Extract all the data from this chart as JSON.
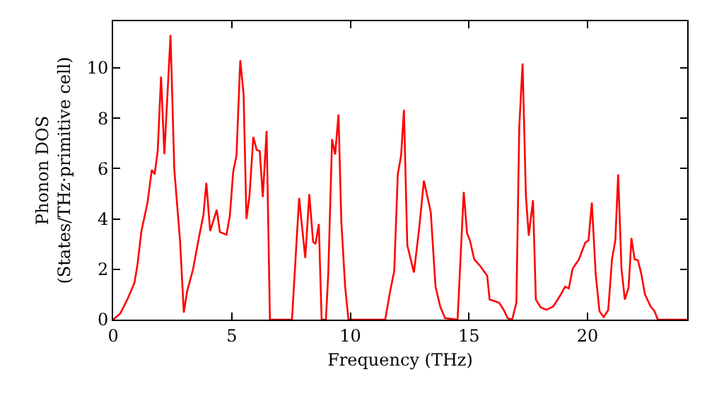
{
  "chart_data": {
    "type": "line",
    "xlabel": "Frequency (THz)",
    "ylabel": "Phonon DOS\n(States/THz·primitive cell)",
    "x": [
      0,
      0.3,
      0.6,
      0.9,
      1.03,
      1.19,
      1.45,
      1.63,
      1.75,
      1.88,
      2.02,
      2.16,
      2.42,
      2.58,
      2.82,
      2.98,
      3.12,
      3.37,
      3.63,
      3.81,
      3.93,
      4.09,
      4.37,
      4.5,
      4.78,
      4.92,
      5.06,
      5.2,
      5.36,
      5.5,
      5.62,
      5.75,
      5.91,
      6.05,
      6.18,
      6.31,
      6.47,
      6.61,
      7.54,
      7.84,
      8.1,
      8.27,
      8.43,
      8.53,
      8.67,
      8.79,
      8.97,
      9.07,
      9.23,
      9.36,
      9.5,
      9.62,
      9.78,
      9.92,
      11.47,
      11.67,
      11.85,
      12.0,
      12.14,
      12.26,
      12.4,
      12.68,
      12.9,
      13.1,
      13.39,
      13.59,
      13.79,
      13.99,
      14.52,
      14.78,
      14.92,
      15.04,
      15.22,
      15.48,
      15.77,
      15.87,
      16.27,
      16.47,
      16.63,
      16.82,
      17.0,
      17.12,
      17.26,
      17.4,
      17.52,
      17.7,
      17.82,
      18.02,
      18.26,
      18.55,
      18.85,
      19.05,
      19.21,
      19.37,
      19.64,
      19.9,
      20.04,
      20.18,
      20.34,
      20.5,
      20.68,
      20.87,
      21.03,
      21.17,
      21.29,
      21.43,
      21.57,
      21.73,
      21.85,
      21.98,
      22.12,
      22.26,
      22.42,
      22.66,
      22.82,
      22.96,
      24.2
    ],
    "series": [
      {
        "color": "#ff0000",
        "values": [
          0,
          0.24,
          0.8,
          1.46,
          2.2,
          3.5,
          4.65,
          5.95,
          5.77,
          6.7,
          9.65,
          6.57,
          11.3,
          5.95,
          3.15,
          0.28,
          1.12,
          2.0,
          3.33,
          4.17,
          5.43,
          3.52,
          4.36,
          3.48,
          3.37,
          4.12,
          5.86,
          6.52,
          10.3,
          8.95,
          3.99,
          4.93,
          7.26,
          6.74,
          6.7,
          4.87,
          7.49,
          0,
          0,
          4.83,
          2.45,
          4.98,
          3.09,
          3.0,
          3.8,
          0,
          0,
          1.84,
          7.17,
          6.56,
          8.15,
          3.9,
          1.31,
          0,
          0,
          1.09,
          1.93,
          5.77,
          6.52,
          8.33,
          2.96,
          1.87,
          3.61,
          5.52,
          4.27,
          1.31,
          0.52,
          0.06,
          0,
          5.07,
          3.43,
          3.15,
          2.4,
          2.12,
          1.74,
          0.8,
          0.67,
          0.38,
          0.06,
          0,
          0.67,
          7.64,
          10.17,
          4.93,
          3.33,
          4.74,
          0.8,
          0.49,
          0.39,
          0.52,
          0.96,
          1.31,
          1.24,
          2.02,
          2.4,
          3.05,
          3.15,
          4.65,
          1.84,
          0.34,
          0.1,
          0.38,
          2.4,
          3.15,
          5.77,
          2.02,
          0.8,
          1.28,
          3.24,
          2.4,
          2.36,
          1.84,
          1.0,
          0.52,
          0.34,
          0,
          0
        ]
      }
    ],
    "xlim": [
      0,
      24.2
    ],
    "ylim": [
      0,
      11.85
    ],
    "xticks": [
      0,
      5,
      10,
      15,
      20
    ],
    "yticks": [
      0,
      2,
      4,
      6,
      8,
      10
    ],
    "grid": false,
    "marker": "none",
    "line_style": "solid"
  }
}
